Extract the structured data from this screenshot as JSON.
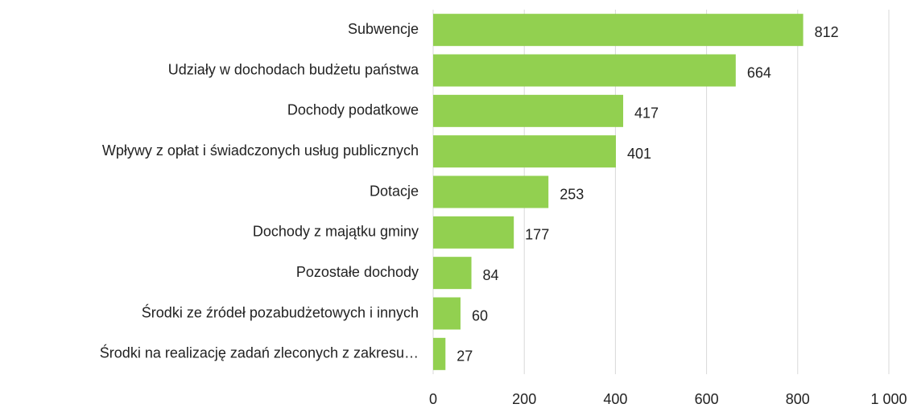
{
  "chart_data": {
    "type": "bar",
    "orientation": "horizontal",
    "categories": [
      "Subwencje",
      "Udziały w dochodach budżetu państwa",
      "Dochody podatkowe",
      "Wpływy z opłat i świadczonych usług publicznych",
      "Dotacje",
      "Dochody z majątku gminy",
      "Pozostałe dochody",
      "Środki ze źródeł pozabudżetowych i innych",
      "Środki na realizację zadań zleconych z zakresu…"
    ],
    "values": [
      812,
      664,
      417,
      401,
      253,
      177,
      84,
      60,
      27
    ],
    "color": "#92d050",
    "xlim": [
      0,
      1000
    ],
    "xticks": [
      0,
      200,
      400,
      600,
      800,
      {
        "value": 1000,
        "label": "1 000"
      }
    ],
    "grid": true
  }
}
